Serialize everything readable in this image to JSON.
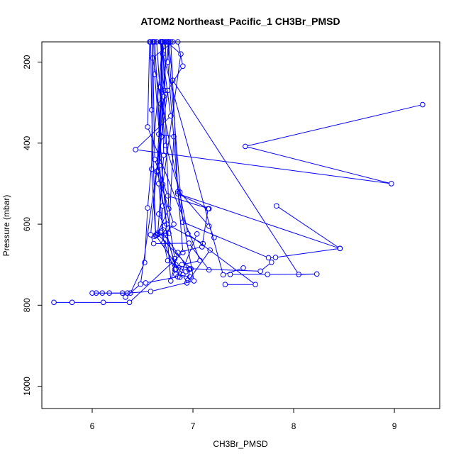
{
  "chart_data": {
    "type": "line",
    "title": "ATOM2 Northeast_Pacific_1 CH3Br_PMSD",
    "xlabel": "CH3Br_PMSD",
    "ylabel": "Pressure (mbar)",
    "xlim": [
      5.5,
      9.45
    ],
    "ylim": [
      1055,
      150
    ],
    "y_reversed": true,
    "x_ticks": [
      6,
      7,
      8,
      9
    ],
    "y_ticks": [
      200,
      400,
      600,
      800,
      1000
    ],
    "grid": false,
    "color": "#0000ff",
    "series": [
      {
        "x": [
          9.28,
          7.52,
          8.97,
          6.43,
          6.78,
          6.68
        ],
        "y": [
          305,
          408,
          500,
          416,
          333,
          150
        ]
      },
      {
        "x": [
          8.46,
          6.85,
          7.16,
          6.75,
          6.62,
          6.6
        ],
        "y": [
          660,
          525,
          562,
          530,
          440,
          150
        ]
      },
      {
        "x": [
          7.83,
          8.46,
          7.82,
          7.75,
          6.9,
          6.75
        ],
        "y": [
          555,
          660,
          682,
          683,
          595,
          150
        ]
      },
      {
        "x": [
          7.5,
          7.3,
          6.7,
          6.72
        ],
        "y": [
          708,
          725,
          180,
          150
        ]
      },
      {
        "x": [
          7.37,
          7.74,
          8.23,
          8.05,
          6.8,
          6.76
        ],
        "y": [
          724,
          724,
          723,
          724,
          245,
          150
        ]
      },
      {
        "x": [
          7.32,
          7.62,
          6.95,
          6.6,
          6.8
        ],
        "y": [
          749,
          749,
          624,
          190,
          150
        ]
      },
      {
        "x": [
          7.78,
          7.67,
          6.98,
          6.65,
          6.71,
          6.68
        ],
        "y": [
          694,
          716,
          710,
          625,
          430,
          150
        ]
      },
      {
        "x": [
          6.95,
          6.97,
          6.83,
          6.82,
          6.7,
          6.62
        ],
        "y": [
          738,
          710,
          700,
          685,
          502,
          150
        ]
      },
      {
        "x": [
          6.3,
          6.33,
          6.48,
          6.75,
          6.9,
          6.85
        ],
        "y": [
          770,
          780,
          748,
          270,
          210,
          150
        ]
      },
      {
        "x": [
          6.0,
          6.1,
          6.17,
          6.38,
          6.52,
          6.55,
          6.7
        ],
        "y": [
          770,
          770,
          770,
          770,
          695,
          560,
          150
        ]
      },
      {
        "x": [
          5.62,
          5.8,
          6.11,
          6.37,
          6.9,
          6.75,
          6.76
        ],
        "y": [
          793,
          793,
          793,
          793,
          670,
          200,
          150
        ]
      },
      {
        "x": [
          6.04,
          6.35,
          6.58,
          7.01,
          6.85,
          6.78
        ],
        "y": [
          770,
          770,
          766,
          740,
          520,
          150
        ]
      },
      {
        "x": [
          6.53,
          6.85,
          6.89,
          7.07,
          6.55,
          6.57
        ],
        "y": [
          745,
          730,
          700,
          690,
          360,
          150
        ]
      },
      {
        "x": [
          6.82,
          6.83,
          6.72,
          6.66,
          6.88,
          6.74
        ],
        "y": [
          712,
          711,
          604,
          575,
          180,
          150
        ]
      },
      {
        "x": [
          7.21,
          7.16,
          6.87,
          6.73,
          6.67,
          6.64
        ],
        "y": [
          633,
          605,
          521,
          406,
          262,
          150
        ]
      },
      {
        "x": [
          7.15,
          7.09,
          6.85,
          6.78,
          6.62,
          6.61
        ],
        "y": [
          562,
          656,
          670,
          740,
          230,
          150
        ]
      },
      {
        "x": [
          7.17,
          6.94,
          6.9,
          6.63,
          6.59,
          6.58
        ],
        "y": [
          664,
          745,
          725,
          627,
          318,
          150
        ]
      },
      {
        "x": [
          7.16,
          6.96,
          6.61,
          6.58,
          6.71,
          6.68
        ],
        "y": [
          713,
          647,
          648,
          626,
          285,
          150
        ]
      },
      {
        "x": [
          7.04,
          6.87,
          6.73,
          6.63,
          6.59,
          6.6
        ],
        "y": [
          624,
          731,
          627,
          627,
          464,
          150
        ]
      },
      {
        "x": [
          6.65,
          6.76,
          6.81,
          6.66,
          6.7
        ],
        "y": [
          622,
          623,
          384,
          378,
          150
        ]
      },
      {
        "x": [
          6.97,
          6.83,
          6.68,
          6.64,
          6.76,
          6.7
        ],
        "y": [
          730,
          724,
          620,
          627,
          562,
          150
        ]
      },
      {
        "x": [
          6.62,
          6.73,
          6.81,
          6.64,
          6.68,
          6.76
        ],
        "y": [
          630,
          622,
          600,
          470,
          303,
          150
        ]
      },
      {
        "x": [
          7.1,
          6.74,
          6.65,
          6.69,
          6.72,
          6.73
        ],
        "y": [
          648,
          600,
          468,
          384,
          270,
          150
        ]
      },
      {
        "x": [
          6.93,
          6.75,
          6.71,
          6.66,
          6.69
        ],
        "y": [
          717,
          690,
          646,
          500,
          150
        ]
      },
      {
        "x": [
          6.96,
          6.69,
          6.7,
          6.67,
          6.7
        ],
        "y": [
          712,
          617,
          555,
          455,
          150
        ]
      }
    ]
  }
}
